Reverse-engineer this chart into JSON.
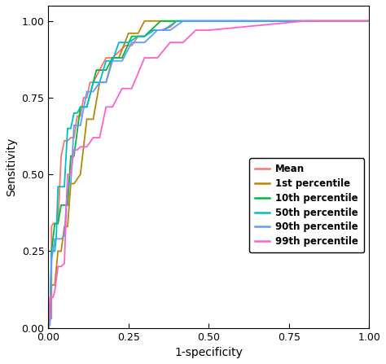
{
  "title": "",
  "xlabel": "1-specificity",
  "ylabel": "Sensitivity",
  "xlim": [
    0.0,
    1.0
  ],
  "ylim": [
    0.0,
    1.05
  ],
  "xticks": [
    0.0,
    0.25,
    0.5,
    0.75,
    1.0
  ],
  "yticks": [
    0.0,
    0.25,
    0.5,
    0.75,
    1.0
  ],
  "series": {
    "Mean": {
      "color": "#F8766D",
      "fpr": [
        0.0,
        0.005,
        0.01,
        0.01,
        0.015,
        0.02,
        0.03,
        0.04,
        0.05,
        0.06,
        0.07,
        0.08,
        0.09,
        0.1,
        0.11,
        0.12,
        0.13,
        0.14,
        0.16,
        0.18,
        0.2,
        0.22,
        0.24,
        0.26,
        0.28,
        0.3,
        0.32,
        0.35,
        0.38,
        0.4,
        0.43,
        0.45,
        1.0
      ],
      "tpr": [
        0.0,
        0.03,
        0.03,
        0.33,
        0.34,
        0.34,
        0.34,
        0.56,
        0.61,
        0.61,
        0.62,
        0.62,
        0.69,
        0.69,
        0.75,
        0.75,
        0.8,
        0.8,
        0.84,
        0.88,
        0.88,
        0.9,
        0.92,
        0.92,
        0.95,
        0.95,
        0.97,
        0.97,
        0.98,
        1.0,
        1.0,
        1.0,
        1.0
      ]
    },
    "1st percentile": {
      "color": "#B8860B",
      "fpr": [
        0.0,
        0.005,
        0.01,
        0.02,
        0.03,
        0.04,
        0.05,
        0.06,
        0.07,
        0.08,
        0.1,
        0.12,
        0.14,
        0.16,
        0.18,
        0.2,
        0.22,
        0.25,
        0.28,
        0.3,
        0.33,
        0.36,
        0.4,
        1.0
      ],
      "tpr": [
        0.0,
        0.04,
        0.14,
        0.14,
        0.25,
        0.25,
        0.33,
        0.33,
        0.47,
        0.47,
        0.5,
        0.68,
        0.68,
        0.8,
        0.8,
        0.88,
        0.88,
        0.96,
        0.96,
        1.0,
        1.0,
        1.0,
        1.0,
        1.0
      ]
    },
    "10th percentile": {
      "color": "#00BA38",
      "fpr": [
        0.0,
        0.005,
        0.01,
        0.02,
        0.03,
        0.04,
        0.05,
        0.06,
        0.07,
        0.08,
        0.1,
        0.12,
        0.15,
        0.18,
        0.2,
        0.23,
        0.26,
        0.3,
        0.35,
        0.4,
        1.0
      ],
      "tpr": [
        0.0,
        0.04,
        0.25,
        0.34,
        0.34,
        0.4,
        0.4,
        0.4,
        0.56,
        0.56,
        0.72,
        0.72,
        0.84,
        0.84,
        0.88,
        0.88,
        0.95,
        0.95,
        1.0,
        1.0,
        1.0
      ]
    },
    "50th percentile": {
      "color": "#00BFC4",
      "fpr": [
        0.0,
        0.005,
        0.01,
        0.02,
        0.025,
        0.03,
        0.04,
        0.05,
        0.06,
        0.07,
        0.08,
        0.09,
        0.1,
        0.12,
        0.14,
        0.16,
        0.18,
        0.2,
        0.22,
        0.25,
        0.28,
        0.3,
        0.33,
        0.36,
        0.4,
        0.45,
        0.5,
        1.0
      ],
      "tpr": [
        0.0,
        0.02,
        0.25,
        0.25,
        0.3,
        0.46,
        0.46,
        0.46,
        0.65,
        0.65,
        0.7,
        0.7,
        0.72,
        0.72,
        0.8,
        0.8,
        0.87,
        0.87,
        0.93,
        0.93,
        0.95,
        0.95,
        0.97,
        0.97,
        1.0,
        1.0,
        1.0,
        1.0
      ]
    },
    "90th percentile": {
      "color": "#619CFF",
      "fpr": [
        0.0,
        0.005,
        0.01,
        0.02,
        0.03,
        0.04,
        0.05,
        0.06,
        0.07,
        0.08,
        0.1,
        0.12,
        0.14,
        0.16,
        0.18,
        0.2,
        0.23,
        0.26,
        0.3,
        0.34,
        0.38,
        0.42,
        0.46,
        0.65,
        1.0
      ],
      "tpr": [
        0.0,
        0.01,
        0.22,
        0.29,
        0.29,
        0.29,
        0.3,
        0.47,
        0.47,
        0.66,
        0.66,
        0.77,
        0.77,
        0.8,
        0.8,
        0.87,
        0.87,
        0.93,
        0.93,
        0.97,
        0.97,
        1.0,
        1.0,
        1.0,
        1.0
      ]
    },
    "99th percentile": {
      "color": "#FF61CC",
      "fpr": [
        0.0,
        0.005,
        0.01,
        0.015,
        0.02,
        0.03,
        0.04,
        0.05,
        0.06,
        0.07,
        0.08,
        0.09,
        0.1,
        0.12,
        0.14,
        0.16,
        0.18,
        0.2,
        0.23,
        0.26,
        0.3,
        0.34,
        0.38,
        0.42,
        0.46,
        0.5,
        0.8,
        1.0
      ],
      "tpr": [
        0.0,
        0.1,
        0.1,
        0.1,
        0.12,
        0.2,
        0.2,
        0.21,
        0.5,
        0.5,
        0.58,
        0.58,
        0.59,
        0.59,
        0.62,
        0.62,
        0.72,
        0.72,
        0.78,
        0.78,
        0.88,
        0.88,
        0.93,
        0.93,
        0.97,
        0.97,
        1.0,
        1.0
      ]
    }
  },
  "legend_entries": [
    "Mean",
    "1st percentile",
    "10th percentile",
    "50th percentile",
    "90th percentile",
    "99th percentile"
  ],
  "legend_colors": [
    "#F8766D",
    "#B8860B",
    "#00BA38",
    "#00BFC4",
    "#619CFF",
    "#FF61CC"
  ],
  "background_color": "#FFFFFF"
}
